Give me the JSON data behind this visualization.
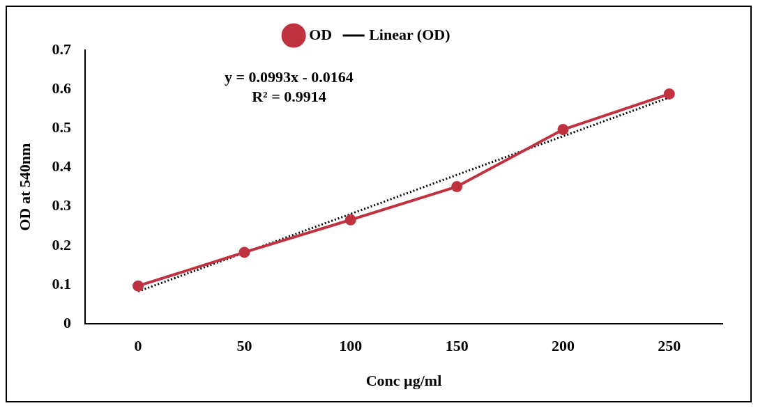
{
  "chart_data": {
    "type": "line",
    "xlabel": "Conc µg/ml",
    "ylabel": "OD at 540nm",
    "categories": [
      "0",
      "50",
      "100",
      "150",
      "200",
      "250"
    ],
    "series": [
      {
        "name": "OD",
        "color": "#c0323f",
        "values": [
          0.097,
          0.183,
          0.266,
          0.351,
          0.497,
          0.588
        ]
      },
      {
        "name": "Linear (OD)",
        "color": "#000000",
        "values": [
          0.083,
          0.182,
          0.281,
          0.381,
          0.48,
          0.579
        ],
        "line_style": "dotted",
        "marker": "none"
      }
    ],
    "ylim": [
      0,
      0.7
    ],
    "yticks": [
      0,
      0.1,
      0.2,
      0.3,
      0.4,
      0.5,
      0.6,
      0.7
    ],
    "grid": false,
    "legend": "top",
    "marker": "circle",
    "line_style": "solid",
    "annotations": [
      "y = 0.0993x - 0.0164",
      "R² = 0.9914"
    ]
  }
}
